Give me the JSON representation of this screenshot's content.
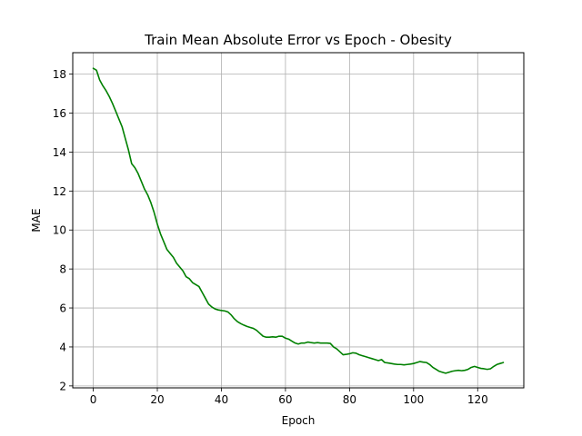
{
  "chart_data": {
    "type": "line",
    "title": "Train Mean Absolute Error vs Epoch - Obesity",
    "xlabel": "Epoch",
    "ylabel": "MAE",
    "xlim": [
      -6.4,
      134.4
    ],
    "ylim": [
      1.9,
      19.1
    ],
    "xticks": [
      0,
      20,
      40,
      60,
      80,
      100,
      120
    ],
    "yticks": [
      2,
      4,
      6,
      8,
      10,
      12,
      14,
      16,
      18
    ],
    "grid": true,
    "series": [
      {
        "color": "#008000",
        "x": [
          0,
          1,
          2,
          3,
          4,
          5,
          6,
          7,
          8,
          9,
          10,
          11,
          12,
          13,
          14,
          15,
          16,
          17,
          18,
          19,
          20,
          21,
          22,
          23,
          24,
          25,
          26,
          27,
          28,
          29,
          30,
          31,
          32,
          33,
          34,
          35,
          36,
          37,
          38,
          39,
          40,
          41,
          42,
          43,
          44,
          45,
          46,
          47,
          48,
          49,
          50,
          51,
          52,
          53,
          54,
          55,
          56,
          57,
          58,
          59,
          60,
          61,
          62,
          63,
          64,
          65,
          66,
          67,
          68,
          69,
          70,
          71,
          72,
          73,
          74,
          75,
          76,
          77,
          78,
          79,
          80,
          81,
          82,
          83,
          84,
          85,
          86,
          87,
          88,
          89,
          90,
          91,
          92,
          93,
          94,
          95,
          96,
          97,
          98,
          99,
          100,
          101,
          102,
          103,
          104,
          105,
          106,
          107,
          108,
          109,
          110,
          111,
          112,
          113,
          114,
          115,
          116,
          117,
          118,
          119,
          120,
          121,
          122,
          123,
          124,
          125,
          126,
          127,
          128
        ],
        "y": [
          18.3,
          18.2,
          17.7,
          17.4,
          17.15,
          16.85,
          16.5,
          16.1,
          15.7,
          15.3,
          14.7,
          14.1,
          13.4,
          13.2,
          12.9,
          12.5,
          12.1,
          11.8,
          11.4,
          10.9,
          10.3,
          9.8,
          9.4,
          9.0,
          8.8,
          8.6,
          8.3,
          8.1,
          7.9,
          7.6,
          7.5,
          7.3,
          7.2,
          7.1,
          6.8,
          6.5,
          6.2,
          6.05,
          5.95,
          5.9,
          5.87,
          5.85,
          5.8,
          5.65,
          5.45,
          5.3,
          5.2,
          5.12,
          5.05,
          5.0,
          4.95,
          4.85,
          4.7,
          4.55,
          4.5,
          4.5,
          4.52,
          4.5,
          4.55,
          4.55,
          4.45,
          4.4,
          4.3,
          4.2,
          4.15,
          4.2,
          4.2,
          4.25,
          4.22,
          4.2,
          4.22,
          4.2,
          4.2,
          4.2,
          4.18,
          4.0,
          3.9,
          3.75,
          3.6,
          3.62,
          3.65,
          3.7,
          3.68,
          3.6,
          3.55,
          3.5,
          3.45,
          3.4,
          3.35,
          3.3,
          3.35,
          3.2,
          3.18,
          3.15,
          3.12,
          3.1,
          3.1,
          3.08,
          3.1,
          3.12,
          3.15,
          3.2,
          3.25,
          3.22,
          3.2,
          3.1,
          2.95,
          2.85,
          2.75,
          2.7,
          2.65,
          2.7,
          2.75,
          2.78,
          2.8,
          2.78,
          2.8,
          2.85,
          2.95,
          3.0,
          2.95,
          2.9,
          2.88,
          2.85,
          2.88,
          3.0,
          3.1,
          3.15,
          3.2
        ]
      }
    ]
  }
}
